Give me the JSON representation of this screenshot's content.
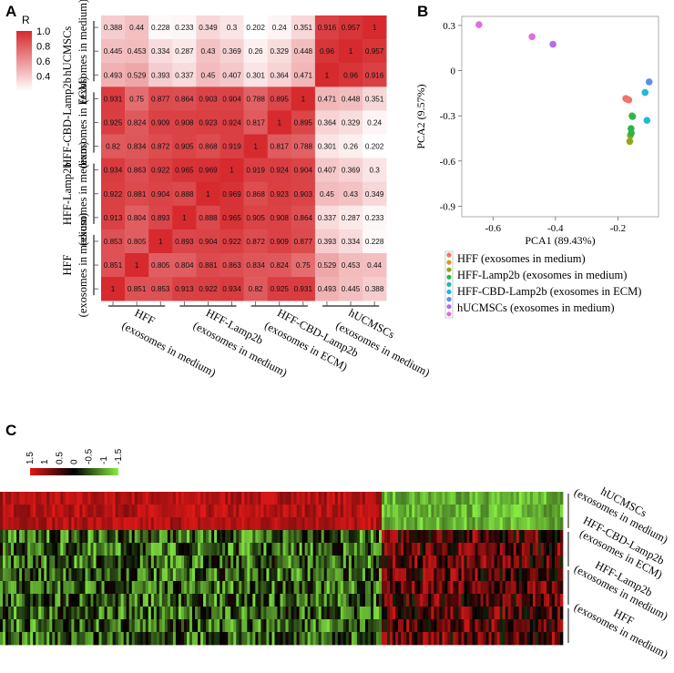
{
  "panels": {
    "a": "A",
    "b": "B",
    "c": "C"
  },
  "corr_legend": {
    "title": "R",
    "ticks": [
      "1.0",
      "0.8",
      "0.6",
      "0.4"
    ],
    "tick_values": [
      1.0,
      0.8,
      0.6,
      0.4
    ],
    "range": [
      0.2,
      1.0
    ],
    "colors": {
      "high": "#d62a2e",
      "low": "#ffffff"
    }
  },
  "heat_legend": {
    "ticks": [
      "1.5",
      "1",
      "0.5",
      "0",
      "-0.5",
      "-1",
      "-1.5"
    ],
    "tick_values": [
      1.5,
      1,
      0.5,
      0,
      -0.5,
      -1,
      -1.5
    ],
    "colors": {
      "high": "#e01818",
      "mid": "#000000",
      "low": "#88ee44"
    }
  },
  "groups": [
    {
      "line1": "hUCMSCs",
      "line2": "(exosomes in medium)"
    },
    {
      "line1": "HFF-CBD-Lamp2b",
      "line2": "(exosomes in ECM)"
    },
    {
      "line1": "HFF-Lamp2b",
      "line2": "(exosomes in medium)"
    },
    {
      "line1": "HFF",
      "line2": "(exosomes in medium)"
    }
  ],
  "bottom_groups": [
    {
      "line1": "HFF",
      "line2": "(exosomes in medium)"
    },
    {
      "line1": "HFF-Lamp2b",
      "line2": "(exosomes in medium)"
    },
    {
      "line1": "HFF-CBD-Lamp2b",
      "line2": "(exosomes in ECM)"
    },
    {
      "line1": "hUCMSCs",
      "line2": "(exosomes in medium)"
    }
  ],
  "chart_data": [
    {
      "type": "heatmap",
      "panel": "A",
      "matrix": [
        [
          "0.388",
          "0.44",
          "0.228",
          "0.233",
          "0.349",
          "0.3",
          "0.202",
          "0.24",
          "0.351",
          "0.916",
          "0.957",
          "1"
        ],
        [
          "0.445",
          "0.453",
          "0.334",
          "0.287",
          "0.43",
          "0.369",
          "0.26",
          "0.329",
          "0.448",
          "0.96",
          "1",
          "0.957"
        ],
        [
          "0.493",
          "0.529",
          "0.393",
          "0.337",
          "0.45",
          "0.407",
          "0.301",
          "0.364",
          "0.471",
          "1",
          "0.96",
          "0.916"
        ],
        [
          "0.931",
          "0.75",
          "0.877",
          "0.864",
          "0.903",
          "0.904",
          "0.788",
          "0.895",
          "1",
          "0.471",
          "0.448",
          "0.351"
        ],
        [
          "0.925",
          "0.824",
          "0.909",
          "0.908",
          "0.923",
          "0.924",
          "0.817",
          "1",
          "0.895",
          "0.364",
          "0.329",
          "0.24"
        ],
        [
          "0.82",
          "0.834",
          "0.872",
          "0.905",
          "0.868",
          "0.919",
          "1",
          "0.817",
          "0.788",
          "0.301",
          "0.26",
          "0.202"
        ],
        [
          "0.934",
          "0.863",
          "0.922",
          "0.965",
          "0.969",
          "1",
          "0.919",
          "0.924",
          "0.904",
          "0.407",
          "0.369",
          "0.3"
        ],
        [
          "0.922",
          "0.881",
          "0.904",
          "0.888",
          "1",
          "0.969",
          "0.868",
          "0.923",
          "0.903",
          "0.45",
          "0.43",
          "0.349"
        ],
        [
          "0.913",
          "0.804",
          "0.893",
          "1",
          "0.888",
          "0.965",
          "0.905",
          "0.908",
          "0.864",
          "0.337",
          "0.287",
          "0.233"
        ],
        [
          "0.853",
          "0.805",
          "1",
          "0.893",
          "0.904",
          "0.922",
          "0.872",
          "0.909",
          "0.877",
          "0.393",
          "0.334",
          "0.228"
        ],
        [
          "0.851",
          "1",
          "0.805",
          "0.804",
          "0.881",
          "0.863",
          "0.834",
          "0.824",
          "0.75",
          "0.529",
          "0.453",
          "0.44"
        ],
        [
          "1",
          "0.851",
          "0.853",
          "0.913",
          "0.922",
          "0.934",
          "0.82",
          "0.925",
          "0.931",
          "0.493",
          "0.445",
          "0.388"
        ]
      ]
    },
    {
      "type": "scatter",
      "panel": "B",
      "xlabel": "PCA1 (89.43%)",
      "ylabel": "PCA2 (9.57%)",
      "xlim": [
        -0.7,
        -0.07
      ],
      "ylim": [
        -0.97,
        0.36
      ],
      "xticks": [
        -0.6,
        -0.4,
        -0.2
      ],
      "xtick_labels": [
        "-0.6",
        "-0.4",
        "-0.2"
      ],
      "yticks": [
        0.3,
        0,
        -0.3,
        -0.6,
        -0.9
      ],
      "ytick_labels": [
        "0.3",
        "0",
        "-0.3",
        "-0.6",
        "-0.9"
      ],
      "series": [
        {
          "name": "HFF (exosomes in medium)",
          "color": "#f0736a",
          "points": [
            [
              -0.175,
              -0.185
            ],
            [
              -0.165,
              -0.195
            ],
            [
              -0.17,
              -0.19
            ]
          ]
        },
        {
          "name": "HFF-Lamp2b (exosomes in medium)",
          "color": "#8fa81a",
          "points": [
            [
              -0.16,
              -0.43
            ],
            [
              -0.162,
              -0.47
            ],
            [
              -0.155,
              -0.3
            ]
          ]
        },
        {
          "name": "HFF-CBD-Lamp2b (exosomes in ECM)",
          "color": "#2cb54b",
          "points": [
            [
              -0.153,
              -0.305
            ],
            [
              -0.158,
              -0.385
            ],
            [
              -0.157,
              -0.415
            ]
          ]
        },
        {
          "name": "",
          "color": "#23b8d6",
          "points": [
            [
              -0.113,
              -0.145
            ],
            [
              -0.107,
              -0.33
            ]
          ]
        },
        {
          "name": "",
          "color": "#5d90e8",
          "points": [
            [
              -0.1,
              -0.075
            ]
          ]
        },
        {
          "name": "hUCMSCs (exosomes in medium)",
          "color": "#e56ce0",
          "points": [
            [
              -0.645,
              0.305
            ],
            [
              -0.475,
              0.225
            ]
          ]
        },
        {
          "name": "",
          "color": "#b96ce6",
          "points": [
            [
              -0.408,
              0.175
            ]
          ]
        }
      ]
    },
    {
      "type": "heatmap",
      "panel": "C",
      "rows": 12,
      "columns": 205
    }
  ]
}
